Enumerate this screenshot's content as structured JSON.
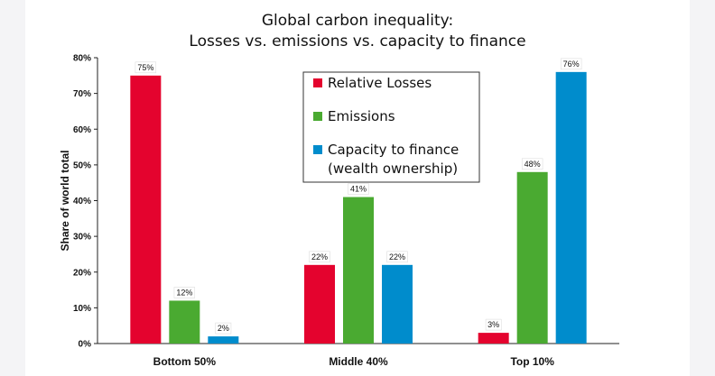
{
  "chart_data": {
    "type": "bar",
    "title": [
      "Global carbon inequality:",
      "Losses vs. emissions vs. capacity to finance"
    ],
    "ylabel": "Share of world total",
    "xlabel": "",
    "ylim": [
      0,
      80
    ],
    "yticks": [
      "0%",
      "10%",
      "20%",
      "30%",
      "40%",
      "50%",
      "60%",
      "70%",
      "80%"
    ],
    "grid": false,
    "legend_position": "top-center",
    "categories": [
      "Bottom 50%",
      "Middle 40%",
      "Top 10%"
    ],
    "series": [
      {
        "name": "Relative Losses",
        "values": [
          75,
          22,
          3
        ],
        "labels": [
          "75%",
          "22%",
          "3%"
        ],
        "color": "#e4032e"
      },
      {
        "name": "Emissions",
        "values": [
          12,
          41,
          48
        ],
        "labels": [
          "12%",
          "41%",
          "48%"
        ],
        "color": "#4aaa31"
      },
      {
        "name": "Capacity to finance\n(wealth ownership)",
        "values": [
          2,
          22,
          76
        ],
        "labels": [
          "2%",
          "22%",
          "76%"
        ],
        "color": "#008ccc"
      }
    ]
  }
}
